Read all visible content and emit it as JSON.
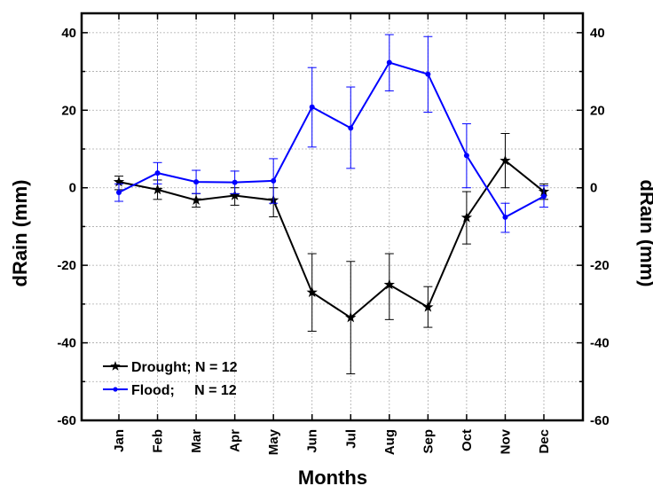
{
  "chart_data": {
    "type": "line",
    "title": "",
    "xlabel": "Months",
    "ylabel_left": "dRain (mm)",
    "ylabel_right": "dRain (mm)",
    "ylim": [
      -60,
      45
    ],
    "yticks": [
      -60,
      -40,
      -20,
      0,
      20,
      40
    ],
    "ytick_labels": [
      "-60",
      "-40",
      "-20",
      "0",
      "20",
      "40"
    ],
    "grid": true,
    "categories": [
      "Jan",
      "Feb",
      "Mar",
      "Apr",
      "May",
      "Jun",
      "Jul",
      "Aug",
      "Sep",
      "Oct",
      "Nov",
      "Dec"
    ],
    "legend_position": "bottom-left",
    "series": [
      {
        "name": "Drought; N = 12",
        "color": "#000000",
        "marker": "star",
        "values": [
          1.5,
          -0.5,
          -3.2,
          -2.0,
          -3.2,
          -27.0,
          -33.5,
          -25.0,
          -30.8,
          -7.7,
          7.0,
          -1.0
        ],
        "err_lower": [
          -0.5,
          -3.0,
          -5.0,
          -4.5,
          -7.5,
          -37.0,
          -48.0,
          -34.0,
          -36.0,
          -14.5,
          0.0,
          -3.0
        ],
        "err_upper": [
          3.0,
          2.0,
          -1.5,
          0.0,
          0.0,
          -17.0,
          -19.0,
          -17.0,
          -25.5,
          -1.0,
          14.0,
          1.0
        ]
      },
      {
        "name": "Flood;     N = 12",
        "color": "#0000ff",
        "marker": "circle",
        "values": [
          -1.2,
          3.8,
          1.5,
          1.4,
          1.8,
          20.8,
          15.4,
          32.3,
          29.3,
          8.3,
          -7.6,
          -2.2
        ],
        "err_lower": [
          -3.5,
          1.0,
          -1.5,
          -1.5,
          -4.0,
          10.5,
          5.0,
          25.0,
          19.5,
          0.0,
          -11.5,
          -5.0
        ],
        "err_upper": [
          1.0,
          6.5,
          4.5,
          4.3,
          7.5,
          31.0,
          26.0,
          39.5,
          39.0,
          16.5,
          -4.0,
          0.5
        ]
      }
    ]
  }
}
